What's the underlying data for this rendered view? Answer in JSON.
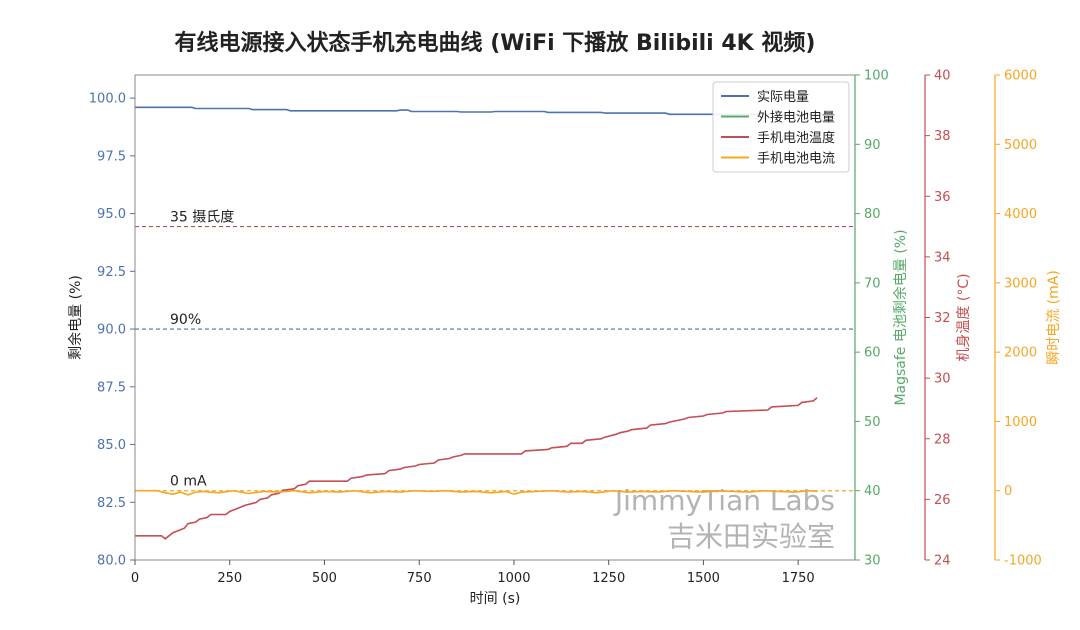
{
  "chart_data": {
    "type": "line",
    "title": "有线电源接入状态手机充电曲线 (WiFi 下播放 Bilibili 4K 视频)",
    "xlabel": "时间 (s)",
    "xlim": [
      0,
      1900
    ],
    "xticks": [
      0,
      250,
      500,
      750,
      1000,
      1250,
      1500,
      1750
    ],
    "axes": {
      "y1": {
        "label": "剩余电量 (%)",
        "ylim": [
          80,
          101
        ],
        "ticks": [
          80.0,
          82.5,
          85.0,
          87.5,
          90.0,
          92.5,
          95.0,
          97.5,
          100.0
        ],
        "tick_labels": [
          "80.0",
          "82.5",
          "85.0",
          "87.5",
          "90.0",
          "92.5",
          "95.0",
          "97.5",
          "100.0"
        ],
        "color": "#4c72b0"
      },
      "y2": {
        "label": "Magsafe 电池剩余电量 (%)",
        "ylim": [
          30,
          100
        ],
        "ticks": [
          30,
          40,
          50,
          60,
          70,
          80,
          90,
          100
        ],
        "color": "#55a868"
      },
      "y3": {
        "label": "机身温度 (°C)",
        "ylim": [
          24,
          40
        ],
        "ticks": [
          24,
          26,
          28,
          30,
          32,
          34,
          36,
          38,
          40
        ],
        "color": "#c44e52"
      },
      "y4": {
        "label": "瞬时电流 (mA)",
        "ylim": [
          -1000,
          6000
        ],
        "ticks": [
          -1000,
          0,
          1000,
          2000,
          3000,
          4000,
          5000,
          6000
        ],
        "color": "#f5a623"
      }
    },
    "series": [
      {
        "name": "实际电量",
        "axis": "y1",
        "color": "#4c72b0",
        "x": [
          0,
          150,
          160,
          300,
          310,
          400,
          410,
          690,
          700,
          720,
          730,
          850,
          860,
          940,
          950,
          1080,
          1090,
          1230,
          1240,
          1400,
          1410,
          1800
        ],
        "y": [
          99.6,
          99.6,
          99.55,
          99.55,
          99.5,
          99.5,
          99.45,
          99.45,
          99.48,
          99.48,
          99.42,
          99.42,
          99.4,
          99.4,
          99.42,
          99.42,
          99.38,
          99.38,
          99.35,
          99.35,
          99.3,
          99.3
        ]
      },
      {
        "name": "外接电池电量",
        "axis": "y2",
        "color": "#55a868",
        "x": [],
        "y": []
      },
      {
        "name": "手机电池温度",
        "axis": "y3",
        "color": "#c44e52",
        "x": [
          0,
          70,
          80,
          100,
          110,
          130,
          140,
          160,
          170,
          190,
          200,
          240,
          250,
          280,
          290,
          320,
          330,
          350,
          360,
          380,
          390,
          420,
          430,
          450,
          460,
          560,
          570,
          600,
          610,
          660,
          670,
          700,
          710,
          740,
          750,
          790,
          800,
          830,
          840,
          860,
          870,
          1020,
          1030,
          1090,
          1100,
          1140,
          1150,
          1180,
          1190,
          1230,
          1240,
          1270,
          1280,
          1300,
          1310,
          1350,
          1360,
          1400,
          1410,
          1450,
          1460,
          1500,
          1510,
          1550,
          1560,
          1670,
          1680,
          1750,
          1760,
          1790,
          1800
        ],
        "y": [
          24.8,
          24.8,
          24.7,
          24.9,
          24.95,
          25.05,
          25.2,
          25.25,
          25.35,
          25.4,
          25.5,
          25.5,
          25.6,
          25.75,
          25.8,
          25.9,
          26.0,
          26.05,
          26.15,
          26.2,
          26.3,
          26.35,
          26.45,
          26.5,
          26.6,
          26.6,
          26.7,
          26.75,
          26.8,
          26.85,
          26.95,
          27.0,
          27.05,
          27.1,
          27.15,
          27.2,
          27.3,
          27.35,
          27.4,
          27.45,
          27.5,
          27.5,
          27.6,
          27.65,
          27.7,
          27.75,
          27.85,
          27.85,
          27.95,
          28.0,
          28.05,
          28.15,
          28.2,
          28.25,
          28.3,
          28.35,
          28.45,
          28.5,
          28.55,
          28.65,
          28.7,
          28.75,
          28.8,
          28.85,
          28.9,
          28.95,
          29.05,
          29.1,
          29.2,
          29.25,
          29.35
        ]
      },
      {
        "name": "手机电池电流",
        "axis": "y4",
        "color": "#f5a623",
        "x": [
          0,
          60,
          80,
          100,
          120,
          140,
          160,
          180,
          220,
          260,
          300,
          340,
          380,
          420,
          460,
          500,
          540,
          580,
          620,
          660,
          700,
          740,
          780,
          820,
          860,
          900,
          940,
          980,
          1000,
          1020,
          1060,
          1100,
          1140,
          1180,
          1220,
          1260,
          1300,
          1340,
          1380,
          1420,
          1460,
          1500,
          1540,
          1580,
          1620,
          1660,
          1700,
          1740,
          1780,
          1800
        ],
        "y": [
          0,
          0,
          -30,
          -50,
          -20,
          -60,
          -20,
          -10,
          -30,
          0,
          -40,
          -10,
          -20,
          0,
          -30,
          -10,
          -20,
          0,
          -30,
          -10,
          -20,
          0,
          -10,
          0,
          -20,
          -10,
          -30,
          -10,
          -50,
          -20,
          -10,
          0,
          -20,
          -10,
          -30,
          0,
          -20,
          -10,
          -20,
          0,
          -10,
          -20,
          0,
          -10,
          -20,
          0,
          -10,
          -20,
          0,
          -10
        ]
      }
    ],
    "reference_lines": [
      {
        "axis": "y1",
        "value": 90.0,
        "label": "90%",
        "color": "#4c72b0",
        "style": "dashed"
      },
      {
        "axis": "y3",
        "value": 35,
        "label": "35 摄氏度",
        "color": "#c44e52",
        "style": "dashed"
      },
      {
        "axis": "y4",
        "value": 0,
        "label": "0 mA",
        "color": "#f5a623",
        "style": "dashed"
      }
    ],
    "legend": {
      "placement": "top-right",
      "entries": [
        "实际电量",
        "外接电池电量",
        "手机电池温度",
        "手机电池电流"
      ]
    },
    "grid": false,
    "watermark": [
      "JimmyTian Labs",
      "吉米田实验室"
    ]
  }
}
